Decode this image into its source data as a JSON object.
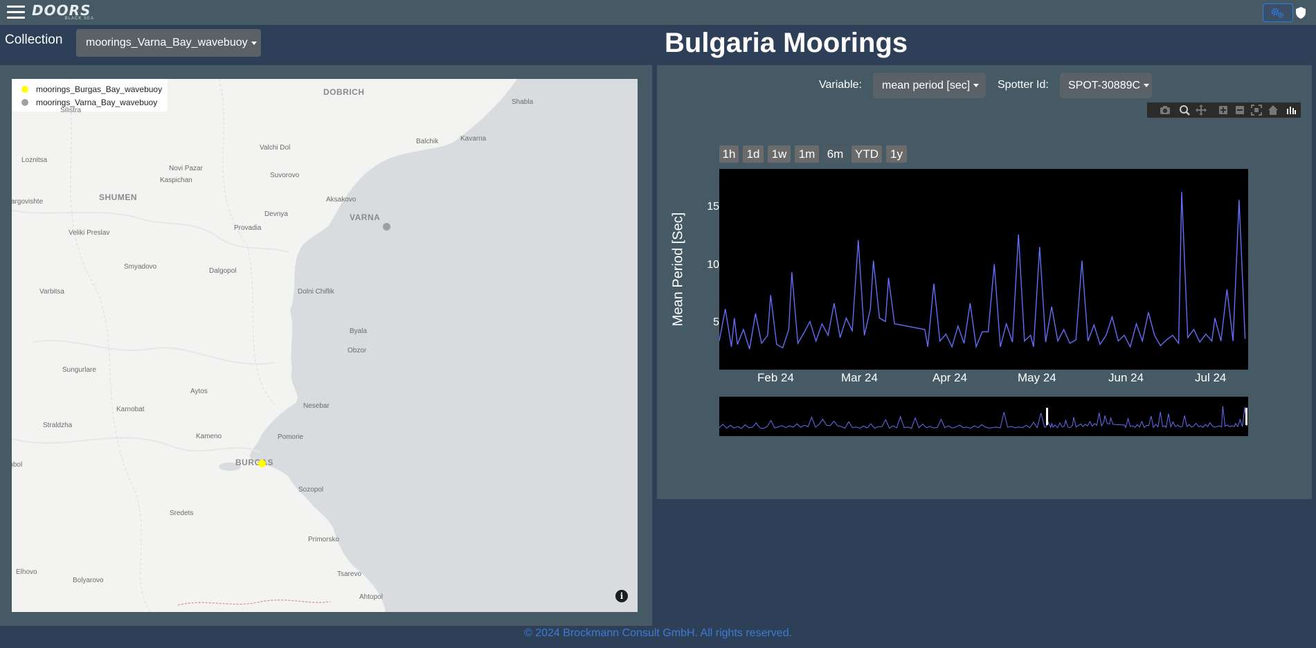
{
  "header": {
    "logo_text": "DOORS",
    "logo_subtitle": "BLACK SEA",
    "icons": [
      "menu-icon",
      "settings-icon",
      "shield-icon"
    ]
  },
  "collection": {
    "label": "Collection",
    "selected": "moorings_Varna_Bay_wavebuoy"
  },
  "page_title": "Bulgaria Moorings",
  "map": {
    "legend": [
      {
        "name": "moorings_Burgas_Bay_wavebuoy",
        "color": "#ffff00"
      },
      {
        "name": "moorings_Varna_Bay_wavebuoy",
        "color": "#a0a0a0"
      }
    ],
    "cities": {
      "dobrich": "DOBRICH",
      "shabla": "Shabla",
      "silistra": "Silistra",
      "balchik": "Balchik",
      "kavarna": "Kavarna",
      "loznitsa": "Loznitsa",
      "valchi_dol": "Valchi Dol",
      "novi_pazar": "Novi Pazar",
      "kaspichan": "Kaspichan",
      "suvorovo": "Suvorovo",
      "targovishte": "Targovishte",
      "shumen": "SHUMEN",
      "aksakovo": "Aksakovo",
      "devnya": "Devnya",
      "varna": "VARNA",
      "veliki_preslav": "Veliki Preslav",
      "provadia": "Provadia",
      "smyadovo": "Smyadovo",
      "dalgopol": "Dalgopol",
      "dolni_chiflik": "Dolni Chiflik",
      "varbitsa": "Varbitsa",
      "byala": "Byala",
      "obzor": "Obzor",
      "sungurlare": "Sungurlare",
      "aytos": "Aytos",
      "karnobat": "Karnobat",
      "nesebar": "Nesebar",
      "straldzha": "Straldzha",
      "kameno": "Kameno",
      "pomorie": "Pomorie",
      "yambol": "Yambol",
      "burgas": "BURGAS",
      "sozopol": "Sozopol",
      "sredets": "Sredets",
      "primorsko": "Primorsko",
      "elhovo": "Elhovo",
      "bolyarovo": "Bolyarovo",
      "tsarevo": "Tsarevo",
      "ahtopol": "Ahtopol"
    },
    "info_label": "i"
  },
  "controls": {
    "variable_label": "Variable:",
    "variable_selected": "mean period [sec]",
    "spotter_label": "Spotter Id:",
    "spotter_selected": "SPOT-30889C",
    "modebar_icons": [
      "camera-icon",
      "zoom-icon",
      "pan-icon",
      "zoom-in-icon",
      "zoom-out-icon",
      "autoscale-icon",
      "reset-axes-icon",
      "plotly-logo-icon"
    ]
  },
  "range_selector": {
    "buttons": [
      "1h",
      "1d",
      "1w",
      "1m",
      "6m",
      "YTD",
      "1y"
    ],
    "active": "6m"
  },
  "chart_data": {
    "type": "line",
    "x_range": [
      "2024-01-22",
      "2024-07-15"
    ],
    "y_range": [
      1,
      18.5
    ],
    "ylabel": "Mean Period [Sec]",
    "xlabel": "",
    "y_ticks": [
      5,
      10,
      15
    ],
    "x_ticks": [
      {
        "label": "Feb 24",
        "date": "2024-02-01"
      },
      {
        "label": "Mar 24",
        "date": "2024-03-01"
      },
      {
        "label": "Apr 24",
        "date": "2024-04-01"
      },
      {
        "label": "May 24",
        "date": "2024-05-01"
      },
      {
        "label": "Jun 24",
        "date": "2024-06-01"
      },
      {
        "label": "Jul 24",
        "date": "2024-07-01"
      }
    ],
    "grid": false,
    "line_color": "#636efa",
    "series": [
      {
        "x": [
          "2024-01-22",
          "2024-01-24",
          "2024-01-26",
          "2024-01-27",
          "2024-01-28",
          "2024-01-30",
          "2024-02-01",
          "2024-02-03",
          "2024-02-05",
          "2024-02-07",
          "2024-02-08",
          "2024-02-10",
          "2024-02-12",
          "2024-02-14",
          "2024-02-15",
          "2024-02-17",
          "2024-02-19",
          "2024-02-21",
          "2024-02-23",
          "2024-02-25",
          "2024-02-27",
          "2024-02-29",
          "2024-03-02",
          "2024-03-04",
          "2024-03-06",
          "2024-03-08",
          "2024-03-10",
          "2024-03-12",
          "2024-03-13",
          "2024-03-15",
          "2024-03-17",
          "2024-03-18",
          "2024-03-20",
          "2024-03-30",
          "2024-03-31",
          "2024-04-02",
          "2024-04-04",
          "2024-04-06",
          "2024-04-08",
          "2024-04-10",
          "2024-04-12",
          "2024-04-14",
          "2024-04-16",
          "2024-04-18",
          "2024-04-20",
          "2024-04-22",
          "2024-04-24",
          "2024-04-26",
          "2024-04-28",
          "2024-04-30",
          "2024-05-02",
          "2024-05-04",
          "2024-05-05",
          "2024-05-07",
          "2024-05-09",
          "2024-05-11",
          "2024-05-13",
          "2024-05-15",
          "2024-05-17",
          "2024-05-19",
          "2024-05-21",
          "2024-05-23",
          "2024-05-25",
          "2024-05-27",
          "2024-05-29",
          "2024-05-31",
          "2024-06-02",
          "2024-06-04",
          "2024-06-06",
          "2024-06-08",
          "2024-06-10",
          "2024-06-12",
          "2024-06-14",
          "2024-06-16",
          "2024-06-18",
          "2024-06-20",
          "2024-06-22",
          "2024-06-23",
          "2024-06-25",
          "2024-06-27",
          "2024-06-29",
          "2024-07-01",
          "2024-07-03",
          "2024-07-04",
          "2024-07-06",
          "2024-07-08",
          "2024-07-10",
          "2024-07-12",
          "2024-07-14"
        ],
        "y": [
          3.5,
          6.3,
          3.0,
          5.5,
          3.2,
          4.5,
          2.8,
          5.9,
          3.3,
          4.0,
          7.5,
          3.2,
          2.9,
          4.5,
          9.5,
          3.3,
          4.2,
          5.2,
          3.5,
          5.0,
          4.0,
          6.8,
          3.8,
          5.5,
          4.4,
          12.3,
          4.0,
          6.3,
          10.5,
          5.5,
          5.2,
          9.0,
          5.0,
          4.5,
          3.0,
          8.5,
          3.5,
          4.1,
          3.0,
          4.8,
          3.3,
          6.8,
          3.0,
          4.3,
          4.3,
          10.2,
          3.0,
          5.0,
          3.4,
          12.8,
          3.5,
          4.0,
          3.0,
          11.7,
          3.4,
          6.5,
          3.5,
          4.5,
          3.3,
          3.6,
          10.5,
          3.5,
          4.9,
          3.2,
          4.0,
          5.6,
          3.5,
          4.0,
          3.0,
          5.0,
          3.5,
          6.0,
          4.0,
          3.1,
          3.6,
          4.0,
          3.3,
          16.5,
          3.8,
          4.5,
          3.4,
          4.1,
          3.5,
          5.5,
          3.5,
          8.0,
          3.5,
          15.8,
          3.7
        ]
      }
    ]
  },
  "footer": "© 2024 Brockmann Consult GmbH. All rights reserved."
}
